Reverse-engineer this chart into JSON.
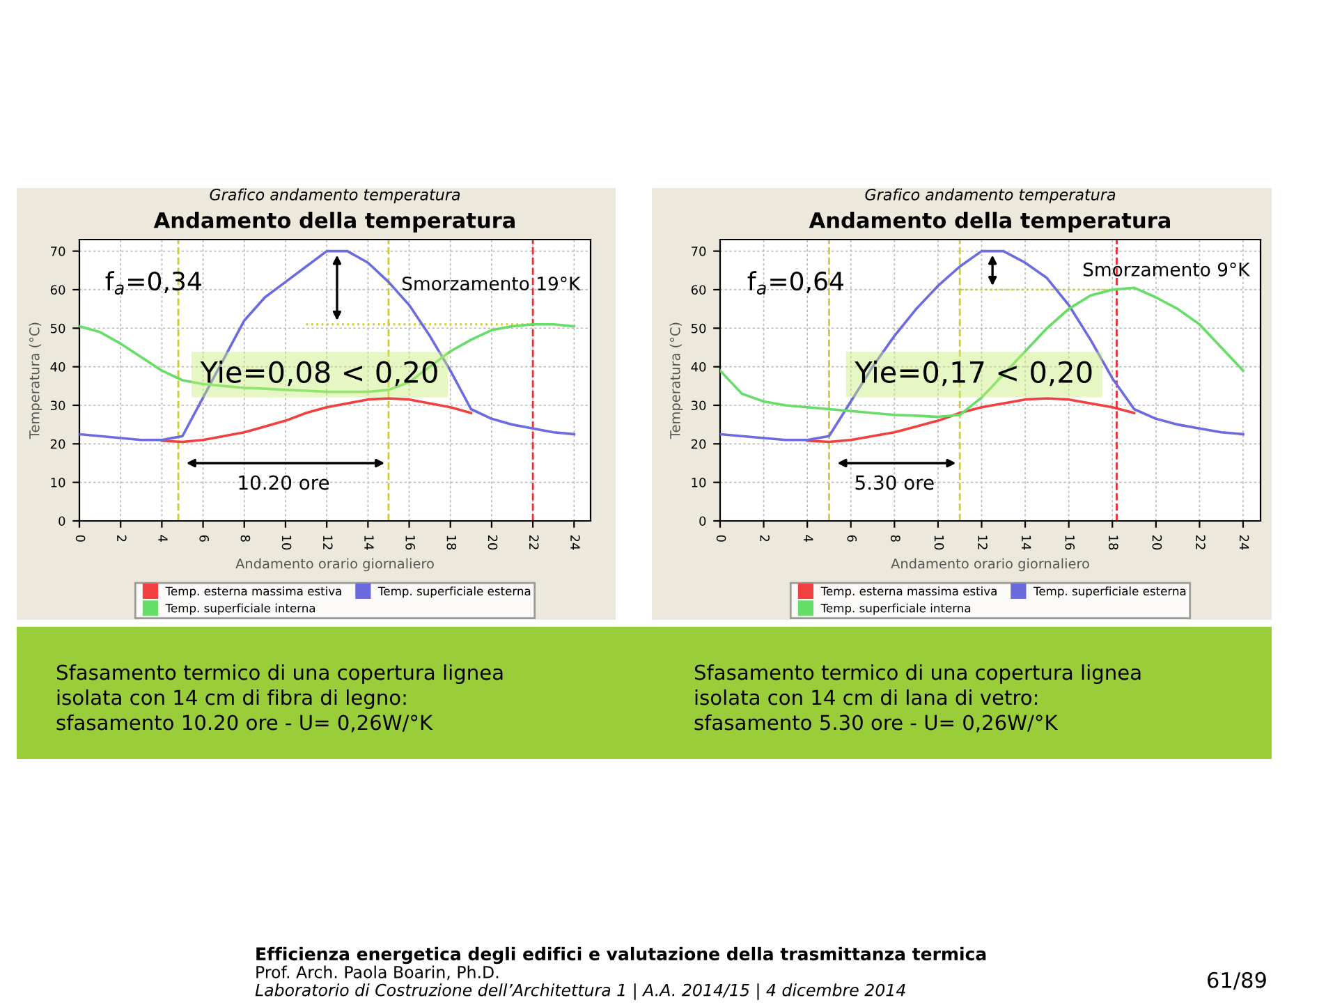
{
  "chart_data": [
    {
      "type": "line",
      "title": "Grafico andamento temperatura",
      "subtitle": "Andamento della temperatura",
      "xlabel": "Andamento orario giornaliero",
      "ylabel": "Temperatura (°C)",
      "x": [
        0,
        1,
        2,
        3,
        4,
        5,
        6,
        7,
        8,
        9,
        10,
        11,
        12,
        13,
        14,
        15,
        16,
        17,
        18,
        19,
        20,
        21,
        22,
        23,
        24
      ],
      "series": [
        {
          "name": "Temp. esterna massima estiva",
          "color": "#f04040",
          "values": [
            null,
            null,
            null,
            null,
            20.8,
            20.5,
            21,
            22,
            23,
            24.5,
            26,
            28,
            29.5,
            30.5,
            31.5,
            31.8,
            31.5,
            30.5,
            29.5,
            28,
            null,
            null,
            null,
            null,
            null
          ]
        },
        {
          "name": "Temp. superficiale esterna",
          "color": "#6b6bdf",
          "values": [
            22.5,
            22,
            21.5,
            21,
            21,
            22,
            32,
            42,
            52,
            58,
            62,
            66,
            70,
            70,
            67,
            62,
            56,
            48,
            39,
            29,
            26.5,
            25,
            24,
            23,
            22.5
          ]
        },
        {
          "name": "Temp. superficiale interna",
          "color": "#66dd66",
          "values": [
            50.5,
            49,
            46,
            42.5,
            39,
            36.5,
            35.5,
            35,
            34.5,
            34.3,
            34,
            33.8,
            33.5,
            33.5,
            33.5,
            34,
            36,
            40,
            44,
            47,
            49.5,
            50.5,
            51,
            51,
            50.5
          ]
        }
      ],
      "xlim": [
        0,
        24.8
      ],
      "ylim": [
        0,
        73
      ],
      "xticks": [
        0,
        2,
        4,
        6,
        8,
        10,
        12,
        14,
        16,
        18,
        20,
        22,
        24
      ],
      "yticks": [
        0,
        10,
        20,
        30,
        40,
        50,
        60,
        70
      ],
      "grid": true,
      "legend": "bottom",
      "marker": "none",
      "line_style": "solid",
      "ref_lines": [
        {
          "axis": "x",
          "value": 4.8,
          "color": "#cccc33",
          "line_style": "dashed"
        },
        {
          "axis": "x",
          "value": 15,
          "color": "#cccc33",
          "line_style": "dashed"
        },
        {
          "axis": "x",
          "value": 22,
          "color": "#e03030",
          "line_style": "dashed"
        },
        {
          "axis": "y",
          "value": 51,
          "color": "#cccc33",
          "line_style": "dotted"
        }
      ],
      "annotations": [
        "f$_{a}$=0,34",
        "Smorzamento 19°K",
        "Yie=0,08 < 0,20",
        "10.20 ore",
        "Sfasamento termico di una copertura lignea",
        "isolata con 14 cm di fibra di legno:",
        "sfasamento 10.20 ore - U= 0,26W/°K"
      ]
    },
    {
      "type": "line",
      "title": "Grafico andamento temperatura",
      "subtitle": "Andamento della temperatura",
      "xlabel": "Andamento orario giornaliero",
      "ylabel": "Temperatura (°C)",
      "x": [
        0,
        1,
        2,
        3,
        4,
        5,
        6,
        7,
        8,
        9,
        10,
        11,
        12,
        13,
        14,
        15,
        16,
        17,
        18,
        19,
        20,
        21,
        22,
        23,
        24
      ],
      "series": [
        {
          "name": "Temp. esterna massima estiva",
          "color": "#f04040",
          "values": [
            null,
            null,
            null,
            null,
            20.8,
            20.5,
            21,
            22,
            23,
            24.5,
            26,
            28,
            29.5,
            30.5,
            31.5,
            31.8,
            31.5,
            30.5,
            29.5,
            28,
            null,
            null,
            null,
            null,
            null
          ]
        },
        {
          "name": "Temp. superficiale esterna",
          "color": "#6b6bdf",
          "values": [
            22.5,
            22,
            21.5,
            21,
            21,
            22,
            31,
            40,
            48,
            55,
            61,
            66,
            70,
            70,
            67,
            63,
            56,
            47,
            37,
            29,
            26.5,
            25,
            24,
            23,
            22.5
          ]
        },
        {
          "name": "Temp. superficiale interna",
          "color": "#66dd66",
          "values": [
            39,
            33,
            31,
            30,
            29.5,
            29,
            28.5,
            28,
            27.5,
            27.3,
            27,
            27.5,
            32,
            38,
            44,
            50,
            55,
            58.5,
            60,
            60.5,
            58,
            55,
            51,
            45,
            39
          ]
        }
      ],
      "xlim": [
        0,
        24.8
      ],
      "ylim": [
        0,
        73
      ],
      "xticks": [
        0,
        2,
        4,
        6,
        8,
        10,
        12,
        14,
        16,
        18,
        20,
        22,
        24
      ],
      "yticks": [
        0,
        10,
        20,
        30,
        40,
        50,
        60,
        70
      ],
      "grid": true,
      "legend": "bottom",
      "marker": "none",
      "line_style": "solid",
      "ref_lines": [
        {
          "axis": "x",
          "value": 5,
          "color": "#cccc33",
          "line_style": "dashed"
        },
        {
          "axis": "x",
          "value": 11,
          "color": "#cccc33",
          "line_style": "dashed"
        },
        {
          "axis": "x",
          "value": 18.2,
          "color": "#e03030",
          "line_style": "dashed"
        },
        {
          "axis": "y",
          "value": 60,
          "color": "#cccc33",
          "line_style": "dotted"
        }
      ],
      "annotations": [
        "f$_{a}$=0,64",
        "Smorzamento 9°K",
        "Yie=0,17 < 0,20",
        "5.30 ore",
        "Sfasamento termico di una copertura lignea",
        "isolata con 14 cm di lana di vetro:",
        "sfasamento 5.30 ore - U= 0,26W/°K"
      ]
    },
    {
      "type": "other",
      "annotations": [
        "Efficienza energetica degli edifici e valutazione della trasmittanza termica",
        "Prof. Arch. Paola Boarin, Ph.D.",
        "Laboratorio di Costruzione dell’Architettura 1 | A.A. 2014/15 | 4 dicembre 2014",
        "61/89"
      ]
    }
  ]
}
